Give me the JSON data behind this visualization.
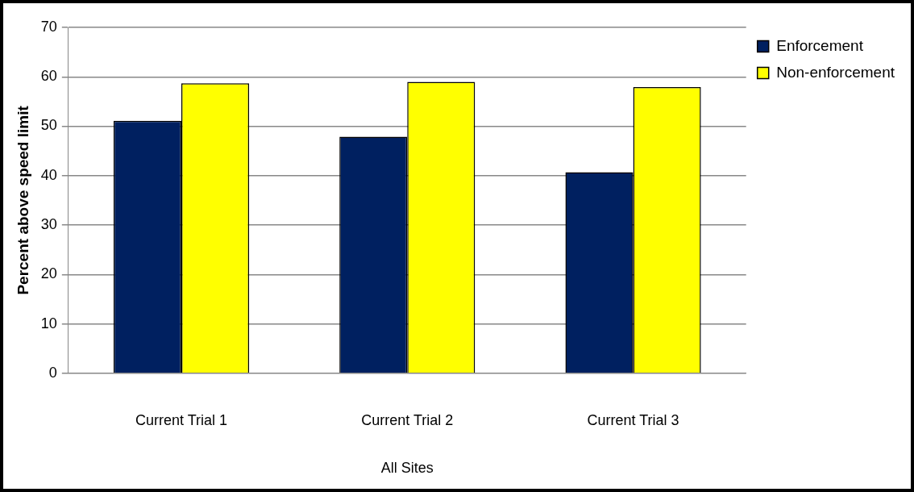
{
  "chart_data": {
    "type": "bar",
    "ylabel": "Percent above speed limit",
    "xlabel": "All Sites",
    "categories": [
      "Current Trial 1",
      "Current Trial 2",
      "Current Trial 3"
    ],
    "series": [
      {
        "name": "Enforcement",
        "color": "#002060",
        "values": [
          51.1,
          47.9,
          40.7
        ]
      },
      {
        "name": "Non-enforcement",
        "color": "#ffff00",
        "values": [
          58.7,
          59.0,
          57.9
        ]
      }
    ],
    "ylim": [
      0,
      70
    ],
    "yticks": [
      0,
      10,
      20,
      30,
      40,
      50,
      60,
      70
    ],
    "grid": "y",
    "legend": "top right"
  }
}
